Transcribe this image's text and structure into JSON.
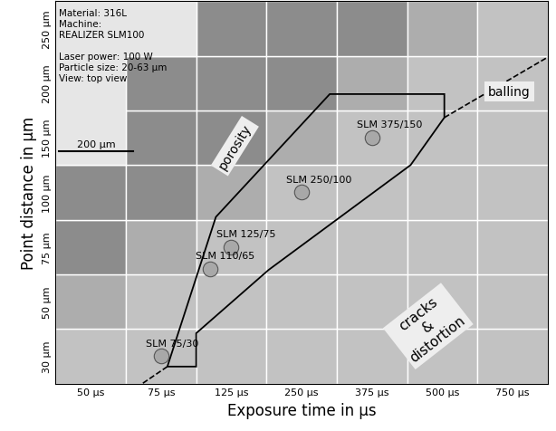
{
  "chart_data": {
    "type": "process_map",
    "x_label": "Exposure time in µs",
    "y_label": "Point distance in µm",
    "x_categories": [
      "50 µs",
      "75 µs",
      "125 µs",
      "250 µs",
      "375 µs",
      "500 µs",
      "750 µs"
    ],
    "x_values": [
      50,
      75,
      125,
      250,
      375,
      500,
      750
    ],
    "y_categories": [
      "30 µm",
      "50 µm",
      "75 µm",
      "100 µm",
      "150 µm",
      "200 µm",
      "250 µm"
    ],
    "y_values": [
      30,
      50,
      75,
      100,
      150,
      200,
      250
    ],
    "points": [
      {
        "label": "SLM 75/30",
        "exposure": 75,
        "distance": 30
      },
      {
        "label": "SLM 110/65",
        "exposure": 110,
        "distance": 65
      },
      {
        "label": "SLM 125/75",
        "exposure": 125,
        "distance": 75
      },
      {
        "label": "SLM 250/100",
        "exposure": 250,
        "distance": 100
      },
      {
        "label": "SLM 375/150",
        "exposure": 375,
        "distance": 150
      }
    ],
    "regions": [
      "porosity",
      "balling",
      "cracks\n&\ndistortion"
    ],
    "info": [
      "Material: 316L",
      "Machine:",
      "REALIZER SLM100",
      "Laser power: 100 W",
      "Particle size: 20-63 µm",
      "View: top view"
    ],
    "scale_bar": "200 µm",
    "marker": "o",
    "color": "#a8a8a8"
  }
}
